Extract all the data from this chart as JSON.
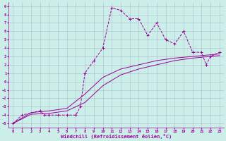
{
  "xlabel": "Windchill (Refroidissement éolien,°C)",
  "bg_color": "#cceee8",
  "line_color": "#990099",
  "grid_color": "#aabbcc",
  "xlim": [
    -0.5,
    23.5
  ],
  "ylim": [
    -5.5,
    9.5
  ],
  "xticks": [
    0,
    1,
    2,
    3,
    4,
    5,
    6,
    7,
    8,
    9,
    10,
    11,
    12,
    13,
    14,
    15,
    16,
    17,
    18,
    19,
    20,
    21,
    22,
    23
  ],
  "yticks": [
    -5,
    -4,
    -3,
    -2,
    -1,
    0,
    1,
    2,
    3,
    4,
    5,
    6,
    7,
    8,
    9
  ],
  "series_main": [
    [
      0,
      -5
    ],
    [
      1,
      -4
    ],
    [
      3,
      -3.5
    ],
    [
      3.5,
      -4
    ],
    [
      4,
      -4
    ],
    [
      5,
      -4
    ],
    [
      6,
      -4
    ],
    [
      7,
      -4
    ],
    [
      7.5,
      -3
    ],
    [
      8,
      1
    ],
    [
      9,
      2.5
    ],
    [
      10,
      4
    ],
    [
      11,
      8.8
    ],
    [
      12,
      8.5
    ],
    [
      13,
      7.5
    ],
    [
      14,
      7.5
    ],
    [
      15,
      5.5
    ],
    [
      16,
      7.0
    ],
    [
      17,
      5.0
    ],
    [
      18,
      4.5
    ],
    [
      19,
      6.0
    ],
    [
      20,
      3.5
    ],
    [
      21,
      3.5
    ],
    [
      21.5,
      2.0
    ],
    [
      22,
      3.0
    ],
    [
      23,
      3.5
    ]
  ],
  "series_line1": [
    [
      0,
      -5
    ],
    [
      2,
      -3.7
    ],
    [
      4,
      -3.5
    ],
    [
      6,
      -3.2
    ],
    [
      8,
      -1.5
    ],
    [
      10,
      0.5
    ],
    [
      12,
      1.5
    ],
    [
      14,
      2.0
    ],
    [
      16,
      2.5
    ],
    [
      18,
      2.8
    ],
    [
      20,
      3.0
    ],
    [
      22,
      3.2
    ],
    [
      23,
      3.3
    ]
  ],
  "series_line2": [
    [
      0,
      -5
    ],
    [
      2,
      -3.9
    ],
    [
      4,
      -3.8
    ],
    [
      6,
      -3.5
    ],
    [
      8,
      -2.5
    ],
    [
      10,
      -0.5
    ],
    [
      12,
      0.8
    ],
    [
      14,
      1.5
    ],
    [
      16,
      2.0
    ],
    [
      18,
      2.5
    ],
    [
      20,
      2.8
    ],
    [
      22,
      3.0
    ],
    [
      23,
      3.1
    ]
  ]
}
